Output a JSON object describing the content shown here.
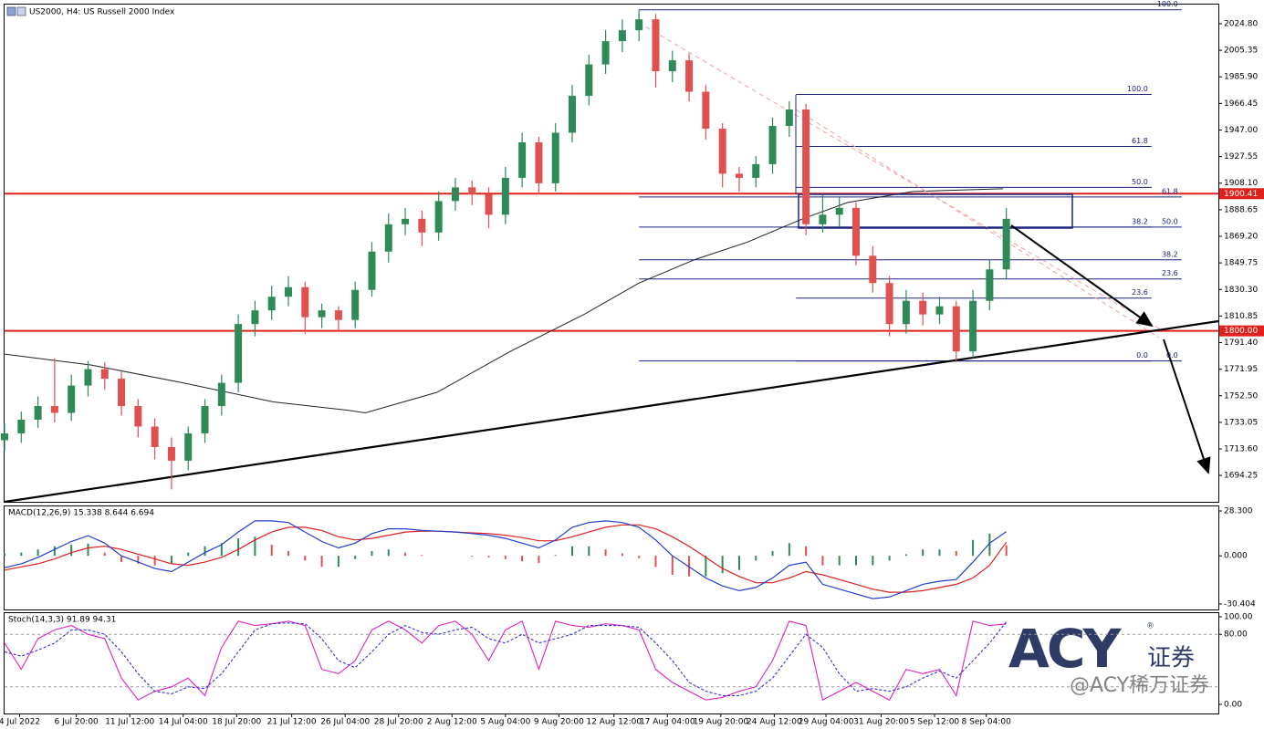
{
  "chart_data": [
    {
      "type": "candlestick",
      "title": "US2000, H4:  US Russell 2000 Index",
      "xlim": [
        0,
        72.7
      ],
      "xticks": [
        {
          "value": 0.9,
          "label": "4 Jul 2022"
        },
        {
          "value": 4.3,
          "label": "6 Jul 20:00"
        },
        {
          "value": 7.5,
          "label": "11 Jul 12:00"
        },
        {
          "value": 10.7,
          "label": "14 Jul 04:00"
        },
        {
          "value": 13.9,
          "label": "18 Jul 20:00"
        },
        {
          "value": 17.2,
          "label": "21 Jul 12:00"
        },
        {
          "value": 20.4,
          "label": "26 Jul 04:00"
        },
        {
          "value": 23.6,
          "label": "28 Jul 20:00"
        },
        {
          "value": 26.8,
          "label": "2 Aug 12:00"
        },
        {
          "value": 30,
          "label": "5 Aug 04:00"
        },
        {
          "value": 33.2,
          "label": "9 Aug 20:00"
        },
        {
          "value": 36.5,
          "label": "12 Aug 12:00"
        },
        {
          "value": 39.7,
          "label": "17 Aug 04:00"
        },
        {
          "value": 42.9,
          "label": "19 Aug 20:00"
        },
        {
          "value": 46.1,
          "label": "24 Aug 12:00"
        },
        {
          "value": 49.2,
          "label": "29 Aug 04:00"
        },
        {
          "value": 52.5,
          "label": "31 Aug 20:00"
        },
        {
          "value": 55.7,
          "label": "5 Sep 12:00"
        },
        {
          "value": 58.8,
          "label": "8 Sep 04:00"
        }
      ],
      "ylim": [
        1674.9,
        2038.8
      ],
      "yticks": [
        {
          "value": 2024.8,
          "label": "2024.80"
        },
        {
          "value": 2005.35,
          "label": "2005.35"
        },
        {
          "value": 1985.9,
          "label": "1985.90"
        },
        {
          "value": 1966.45,
          "label": "1966.45"
        },
        {
          "value": 1947,
          "label": "1947.00"
        },
        {
          "value": 1927.55,
          "label": "1927.55"
        },
        {
          "value": 1908.1,
          "label": "1908.10"
        },
        {
          "value": 1888.65,
          "label": "1888.65"
        },
        {
          "value": 1869.2,
          "label": "1869.20"
        },
        {
          "value": 1849.75,
          "label": "1849.75"
        },
        {
          "value": 1830.3,
          "label": "1830.30"
        },
        {
          "value": 1810.85,
          "label": "1810.85"
        },
        {
          "value": 1791.4,
          "label": "1791.40"
        },
        {
          "value": 1771.95,
          "label": "1771.95"
        },
        {
          "value": 1752.5,
          "label": "1752.50"
        },
        {
          "value": 1733.05,
          "label": "1733.05"
        },
        {
          "value": 1713.6,
          "label": "1713.60"
        },
        {
          "value": 1694.25,
          "label": "1694.25"
        }
      ],
      "up_color": "#2e8b57",
      "down_color": "#e0504f",
      "open": [
        1720,
        1725,
        1735,
        1745,
        1740,
        1760,
        1772,
        1765,
        1745,
        1730,
        1715,
        1705,
        1725,
        1745,
        1762,
        1805,
        1815,
        1825,
        1832,
        1810,
        1815,
        1808,
        1830,
        1858,
        1878,
        1882,
        1872,
        1895,
        1905,
        1900,
        1885,
        1912,
        1938,
        1908,
        1945,
        1972,
        1995,
        2012,
        2020,
        2028,
        1990,
        1998,
        1975,
        1948,
        1915,
        1912,
        1922,
        1950,
        1962,
        1878,
        1885,
        1890,
        1855,
        1835,
        1805,
        1822,
        1812,
        1818,
        1785,
        1822,
        1845
      ],
      "high": [
        1732,
        1741,
        1752,
        1780,
        1768,
        1778,
        1777,
        1770,
        1750,
        1736,
        1722,
        1730,
        1750,
        1768,
        1812,
        1822,
        1833,
        1840,
        1836,
        1820,
        1818,
        1836,
        1865,
        1886,
        1890,
        1888,
        1902,
        1912,
        1910,
        1905,
        1920,
        1945,
        1942,
        1952,
        1980,
        2002,
        2020,
        2028,
        2035,
        2032,
        2005,
        2003,
        1980,
        1952,
        1920,
        1928,
        1956,
        1968,
        1966,
        1900,
        1898,
        1894,
        1862,
        1840,
        1830,
        1828,
        1825,
        1822,
        1830,
        1852,
        1890
      ],
      "low": [
        1712,
        1718,
        1729,
        1733,
        1734,
        1752,
        1757,
        1738,
        1722,
        1706,
        1684,
        1698,
        1718,
        1738,
        1755,
        1796,
        1808,
        1818,
        1798,
        1802,
        1800,
        1802,
        1825,
        1850,
        1870,
        1862,
        1866,
        1888,
        1892,
        1875,
        1878,
        1905,
        1900,
        1902,
        1938,
        1965,
        1988,
        2004,
        2012,
        1978,
        1982,
        1968,
        1940,
        1905,
        1902,
        1905,
        1915,
        1942,
        1870,
        1872,
        1876,
        1848,
        1828,
        1796,
        1798,
        1804,
        1805,
        1777,
        1780,
        1815,
        1838
      ],
      "close": [
        1725,
        1735,
        1745,
        1740,
        1760,
        1772,
        1765,
        1745,
        1730,
        1715,
        1705,
        1725,
        1745,
        1762,
        1805,
        1815,
        1825,
        1832,
        1810,
        1815,
        1808,
        1830,
        1858,
        1878,
        1882,
        1872,
        1895,
        1905,
        1900,
        1885,
        1912,
        1938,
        1908,
        1945,
        1972,
        1995,
        2012,
        2020,
        2028,
        1990,
        1998,
        1975,
        1948,
        1915,
        1912,
        1922,
        1950,
        1962,
        1878,
        1885,
        1890,
        1855,
        1835,
        1805,
        1822,
        1812,
        1818,
        1785,
        1822,
        1845,
        1882
      ],
      "moving_average": {
        "color": "#222222",
        "x": [
          0,
          5.2,
          10.7,
          16.1,
          20.5,
          21.6,
          25.9,
          30.3,
          34.7,
          38,
          41.3,
          44.5,
          47.8,
          50.5,
          54.4,
          59.8
        ],
        "values": [
          1783,
          1775,
          1762,
          1748,
          1742,
          1740,
          1755,
          1785,
          1812,
          1835,
          1852,
          1865,
          1882,
          1894,
          1902,
          1904
        ]
      },
      "hlines": [
        {
          "value": 1900.41,
          "label": "1900.41",
          "color": "#e0201c"
        },
        {
          "value": 1800,
          "label": "1800.00",
          "color": "#e0201c"
        }
      ],
      "fibonacci": [
        {
          "color": "#1a237e",
          "x": [
            38,
            70.5
          ],
          "levels": [
            {
              "value": 2035,
              "label": "100.0"
            },
            {
              "value": 1898,
              "label": "61.8"
            },
            {
              "value": 1876,
              "label": "50.0"
            },
            {
              "value": 1852,
              "label": "38.2"
            },
            {
              "value": 1838,
              "label": "23.6"
            },
            {
              "value": 1778,
              "label": "0.0"
            }
          ]
        },
        {
          "color": "#1a237e",
          "x": [
            47.4,
            68.7
          ],
          "levels": [
            {
              "value": 1973,
              "label": "100.0"
            },
            {
              "value": 1935,
              "label": "61.8"
            },
            {
              "value": 1905,
              "label": "50.0"
            },
            {
              "value": 1876,
              "label": "38.2"
            },
            {
              "value": 1824,
              "label": "23.6"
            },
            {
              "value": 1778,
              "label": "0.0"
            }
          ]
        }
      ]
    },
    {
      "type": "macd",
      "title": "MACD(12,26,9) 15.338 8.644 6.694",
      "ylim": [
        -33.86,
        31.18
      ],
      "yticks": [
        {
          "value": 28.3,
          "label": "28.300"
        },
        {
          "value": 0,
          "label": "0.000"
        },
        {
          "value": -30.404,
          "label": "-30.404"
        }
      ],
      "macd": {
        "color": "#1f3fd0",
        "values": [
          -7.5,
          -5,
          -1,
          4,
          9,
          12.7,
          8,
          0,
          -4,
          -8,
          -10,
          -4,
          2,
          7,
          15,
          22,
          22,
          21,
          15,
          9,
          5,
          8,
          14,
          17,
          17,
          16,
          15.5,
          15,
          14,
          13,
          11,
          8,
          5,
          10,
          18,
          21,
          22,
          21,
          18,
          10,
          0,
          -7,
          -14,
          -19,
          -22,
          -20,
          -14,
          -6,
          -4,
          -18,
          -21,
          -24,
          -27,
          -26,
          -22,
          -18,
          -16,
          -15,
          -4,
          8,
          15.3
        ]
      },
      "signal": {
        "color": "#e0201c",
        "values": [
          -9,
          -7,
          -5,
          -2,
          2,
          5,
          6,
          4,
          1,
          -2,
          -5,
          -6,
          -4,
          -1,
          4,
          10,
          15,
          18,
          18,
          16,
          12,
          10,
          11,
          13,
          15,
          15.5,
          15.5,
          15,
          14.5,
          14,
          13,
          11.5,
          9.5,
          9.5,
          12,
          15,
          18,
          19.5,
          19.5,
          17,
          12,
          6,
          -1,
          -8,
          -13,
          -17,
          -17,
          -14,
          -10,
          -12,
          -15,
          -18,
          -21,
          -23,
          -23,
          -22,
          -20,
          -18,
          -14,
          -6,
          8.6
        ]
      },
      "histogram": {
        "up_color": "#2e8b57",
        "down_color": "#e0504f",
        "values": [
          1.5,
          2,
          4,
          6,
          7,
          7.7,
          2,
          -4,
          -5,
          -6,
          -5,
          2,
          6,
          8,
          11,
          12,
          7,
          3,
          -3,
          -7,
          -7,
          -2,
          3,
          4,
          2,
          0.5,
          0,
          0,
          -0.5,
          -1,
          -2,
          -3.5,
          -4.5,
          0.5,
          6,
          6,
          4,
          1.5,
          -1.5,
          -7,
          -12,
          -13,
          -13,
          -11,
          -9,
          -3,
          3,
          8,
          6,
          -6,
          -6,
          -6,
          -6,
          -3,
          1,
          4,
          4,
          3,
          10,
          14,
          6.7
        ]
      }
    },
    {
      "type": "stochastic",
      "title": "Stoch(14,3,3) 91.89 94.31",
      "ylim": [
        -10.42,
        104.17
      ],
      "yticks": [
        {
          "value": 100,
          "label": "100.00"
        },
        {
          "value": 80,
          "label": "80.00"
        },
        {
          "value": 0,
          "label": "0.00"
        }
      ],
      "levels": [
        80,
        20
      ],
      "k": {
        "color": "#e020c0",
        "values": [
          70,
          40,
          75,
          85,
          90,
          80,
          75,
          30,
          5,
          15,
          20,
          30,
          10,
          65,
          95,
          90,
          92,
          95,
          90,
          40,
          35,
          50,
          85,
          95,
          85,
          70,
          90,
          95,
          80,
          50,
          85,
          95,
          40,
          95,
          90,
          88,
          92,
          90,
          85,
          40,
          25,
          15,
          5,
          8,
          15,
          20,
          50,
          95,
          90,
          5,
          15,
          25,
          15,
          5,
          40,
          35,
          40,
          10,
          95,
          90,
          91.89
        ]
      },
      "d": {
        "color": "#3030e0",
        "values": [
          60,
          55,
          62,
          70,
          85,
          85,
          80,
          60,
          35,
          15,
          12,
          20,
          18,
          35,
          60,
          85,
          92,
          93,
          92,
          75,
          50,
          42,
          60,
          80,
          90,
          82,
          80,
          85,
          88,
          75,
          70,
          80,
          70,
          75,
          80,
          90,
          90,
          90,
          88,
          70,
          50,
          25,
          15,
          10,
          10,
          15,
          30,
          55,
          80,
          65,
          35,
          15,
          18,
          15,
          20,
          30,
          38,
          30,
          50,
          70,
          94.31
        ]
      }
    }
  ],
  "watermark": {
    "logo": "ACY",
    "logo_sub": "证券",
    "mark": "®",
    "handle": "@ACY稀万证券"
  }
}
